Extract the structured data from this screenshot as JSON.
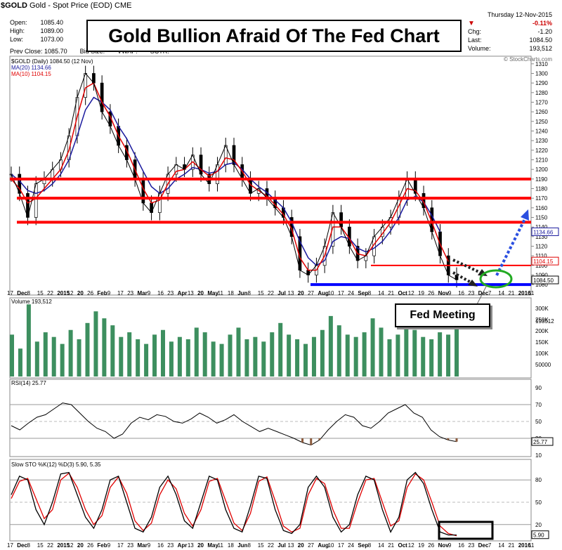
{
  "header": {
    "symbol": "$GOLD",
    "desc": "Gold - Spot Price (EOD)",
    "exchange": "CME",
    "date": "Thursday 12-Nov-2015",
    "credit": "© StockCharts.com"
  },
  "quote": {
    "open_label": "Open:",
    "open": "1085.40",
    "high_label": "High:",
    "high": "1089.00",
    "low_label": "Low:",
    "low": "1073.00",
    "prev_label": "Prev Close:",
    "prev": "1085.70",
    "bid_label": "Bid Size:",
    "vwap_label": "VWAP:",
    "sctr_label": "SCTR:",
    "pct": "-0.11%",
    "chg_label": "Chg:",
    "chg": "-1.20",
    "last_label": "Last:",
    "last": "1084.50",
    "vol_label": "Volume:",
    "vol": "193,512"
  },
  "colors": {
    "price": "#000000",
    "ma20": "#1a1a9e",
    "ma10": "#e00000",
    "support": "#ff0000",
    "bottom": "#0000ff",
    "volume": "#3d8f5f",
    "arrow_up": "#2b4fe0",
    "ellipse": "#22aa22"
  },
  "chart_data": [
    {
      "type": "line",
      "title": "Gold Bullion Afraid Of The Fed Chart",
      "legend": [
        "$GOLD (Daily) 1084.50 (12 Nov)",
        "MA(20) 1134.66",
        "MA(10) 1104.15"
      ],
      "x_ticks": [
        "17",
        "Dec",
        "8",
        "15",
        "22",
        "2015",
        "12",
        "20",
        "26",
        "Feb",
        "9",
        "17",
        "23",
        "Mar",
        "9",
        "16",
        "23",
        "Apr",
        "13",
        "20",
        "May",
        "11",
        "18",
        "Jun",
        "8",
        "15",
        "22",
        "Jul",
        "13",
        "20",
        "27",
        "Aug",
        "10",
        "17",
        "24",
        "Sep",
        "8",
        "14",
        "21",
        "Oct",
        "12",
        "19",
        "26",
        "Nov",
        "9",
        "16",
        "23",
        "Dec",
        "7",
        "14",
        "21",
        "2016",
        "11"
      ],
      "ylim": [
        1075,
        1315
      ],
      "y_ticks": [
        1080,
        1090,
        1100,
        1110,
        1120,
        1130,
        1140,
        1150,
        1160,
        1170,
        1180,
        1190,
        1200,
        1210,
        1220,
        1230,
        1240,
        1250,
        1260,
        1270,
        1280,
        1290,
        1300,
        1310
      ],
      "price_series": [
        1195,
        1175,
        1150,
        1185,
        1190,
        1200,
        1210,
        1235,
        1275,
        1300,
        1290,
        1260,
        1245,
        1225,
        1210,
        1190,
        1165,
        1155,
        1175,
        1195,
        1205,
        1200,
        1215,
        1195,
        1185,
        1205,
        1225,
        1205,
        1190,
        1175,
        1180,
        1170,
        1160,
        1150,
        1130,
        1095,
        1090,
        1100,
        1120,
        1155,
        1140,
        1120,
        1105,
        1110,
        1130,
        1140,
        1150,
        1170,
        1190,
        1175,
        1160,
        1135,
        1110,
        1090,
        1085
      ],
      "ma10_series": [
        1190,
        1180,
        1165,
        1170,
        1180,
        1190,
        1200,
        1220,
        1255,
        1285,
        1290,
        1270,
        1255,
        1235,
        1220,
        1200,
        1180,
        1165,
        1168,
        1185,
        1198,
        1200,
        1208,
        1200,
        1193,
        1198,
        1212,
        1210,
        1198,
        1184,
        1178,
        1172,
        1163,
        1153,
        1138,
        1108,
        1095,
        1095,
        1110,
        1140,
        1140,
        1128,
        1112,
        1110,
        1122,
        1133,
        1145,
        1162,
        1180,
        1178,
        1166,
        1145,
        1122,
        1104
      ],
      "ma20_series": [
        1195,
        1188,
        1178,
        1175,
        1178,
        1185,
        1195,
        1210,
        1235,
        1262,
        1275,
        1270,
        1262,
        1245,
        1232,
        1215,
        1198,
        1182,
        1175,
        1180,
        1190,
        1195,
        1202,
        1200,
        1196,
        1198,
        1205,
        1207,
        1200,
        1190,
        1182,
        1176,
        1168,
        1160,
        1145,
        1125,
        1108,
        1100,
        1105,
        1125,
        1130,
        1128,
        1118,
        1114,
        1118,
        1125,
        1136,
        1150,
        1168,
        1172,
        1166,
        1152,
        1135
      ],
      "levels": [
        1190,
        1170,
        1145,
        1100,
        1080
      ],
      "annotation": "Fed Meeting",
      "right_labels": [
        "1134.66",
        "1104.15",
        "1084.50"
      ]
    },
    {
      "type": "bar",
      "title": "Volume 193,512",
      "y_ticks": [
        "300K",
        "250K",
        "200K",
        "150K",
        "100K",
        "50000"
      ],
      "right_label": "193512",
      "values": [
        180,
        120,
        310,
        150,
        190,
        170,
        140,
        200,
        160,
        230,
        280,
        250,
        220,
        170,
        190,
        160,
        140,
        180,
        200,
        150,
        170,
        160,
        210,
        190,
        150,
        140,
        180,
        210,
        160,
        170,
        150,
        190,
        230,
        180,
        160,
        140,
        170,
        200,
        260,
        220,
        180,
        170,
        190,
        250,
        210,
        160,
        180,
        220,
        200,
        170,
        160,
        190,
        180,
        210
      ]
    },
    {
      "type": "line",
      "title": "RSI(14) 25.77",
      "ylim": [
        10,
        95
      ],
      "y_ticks": [
        90,
        70,
        50,
        30,
        10
      ],
      "right_label": "25.77",
      "values": [
        45,
        40,
        48,
        55,
        58,
        65,
        72,
        70,
        60,
        50,
        42,
        38,
        30,
        35,
        48,
        55,
        52,
        58,
        56,
        50,
        48,
        53,
        60,
        55,
        48,
        52,
        58,
        50,
        44,
        38,
        42,
        38,
        34,
        30,
        25,
        22,
        28,
        40,
        50,
        58,
        55,
        45,
        42,
        50,
        60,
        65,
        70,
        60,
        55,
        40,
        32,
        28,
        26
      ]
    },
    {
      "type": "line",
      "title": "Slow STO %K(12) %D(3) 5.90, 5.35",
      "ylim": [
        0,
        100
      ],
      "y_ticks": [
        80,
        50,
        20
      ],
      "right_label": "5.90",
      "k_values": [
        60,
        85,
        80,
        40,
        20,
        50,
        88,
        90,
        60,
        30,
        15,
        40,
        80,
        85,
        50,
        15,
        10,
        30,
        70,
        85,
        60,
        25,
        15,
        50,
        85,
        80,
        40,
        15,
        10,
        45,
        85,
        82,
        40,
        12,
        8,
        20,
        70,
        85,
        70,
        30,
        10,
        20,
        60,
        85,
        80,
        40,
        10,
        30,
        80,
        90,
        75,
        40,
        10,
        6,
        6
      ],
      "d_values": [
        55,
        78,
        82,
        55,
        28,
        40,
        80,
        89,
        70,
        40,
        20,
        32,
        70,
        84,
        62,
        25,
        12,
        22,
        60,
        80,
        68,
        35,
        18,
        40,
        78,
        82,
        52,
        22,
        12,
        35,
        78,
        84,
        52,
        18,
        10,
        15,
        60,
        82,
        75,
        40,
        15,
        15,
        50,
        80,
        82,
        50,
        18,
        25,
        70,
        88,
        80,
        50,
        18,
        8,
        5
      ]
    }
  ]
}
